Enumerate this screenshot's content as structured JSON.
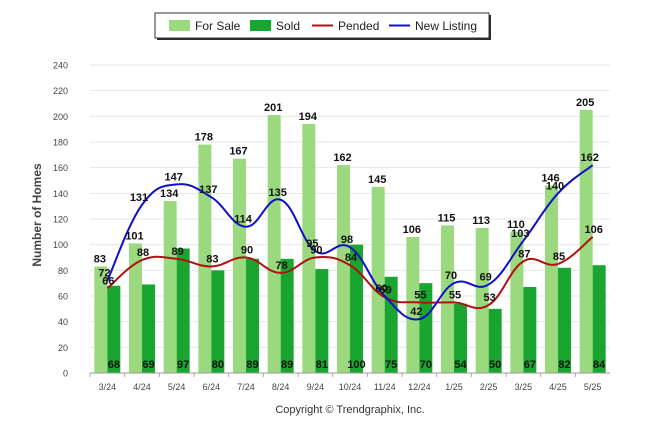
{
  "colors": {
    "for_sale": "#9bd97f",
    "sold": "#1aa531",
    "pended": "#b01010",
    "new_listing": "#1010c8",
    "grid": "#e6e6e6",
    "axis_text": "#444444"
  },
  "footer": "Copyright © Trendgraphix, Inc.",
  "chart_data": {
    "type": "bar",
    "title": "",
    "ylabel": "Number of Homes",
    "xlabel": "",
    "ylim": [
      0,
      240
    ],
    "yticks": [
      0,
      20,
      40,
      60,
      80,
      100,
      120,
      140,
      160,
      180,
      200,
      220,
      240
    ],
    "grid": true,
    "legend_position": "top-center",
    "categories": [
      "3/24",
      "4/24",
      "5/24",
      "6/24",
      "7/24",
      "8/24",
      "9/24",
      "10/24",
      "11/24",
      "12/24",
      "1/25",
      "2/25",
      "3/25",
      "4/25",
      "5/25"
    ],
    "series": [
      {
        "name": "For Sale",
        "kind": "bar",
        "values": [
          83,
          101,
          134,
          178,
          167,
          201,
          194,
          162,
          145,
          106,
          115,
          113,
          110,
          146,
          205
        ]
      },
      {
        "name": "Sold",
        "kind": "bar",
        "values": [
          68,
          69,
          97,
          80,
          89,
          89,
          81,
          100,
          75,
          70,
          54,
          50,
          67,
          82,
          84
        ]
      },
      {
        "name": "Pended",
        "kind": "line",
        "values": [
          66,
          88,
          89,
          83,
          90,
          78,
          90,
          84,
          59,
          55,
          55,
          53,
          87,
          85,
          106
        ]
      },
      {
        "name": "New Listing",
        "kind": "line",
        "values": [
          72,
          131,
          147,
          137,
          114,
          135,
          95,
          98,
          60,
          42,
          70,
          69,
          103,
          140,
          162
        ]
      }
    ]
  }
}
